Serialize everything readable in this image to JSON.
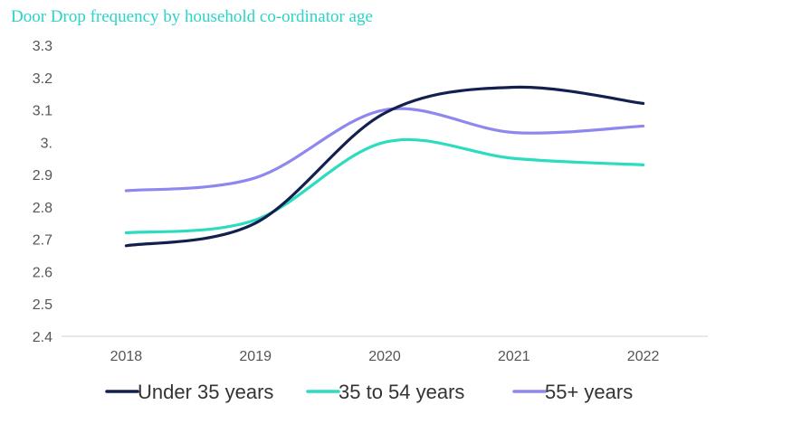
{
  "chart_data": {
    "type": "line",
    "title": "Door Drop frequency by household co-ordinator age",
    "xlabel": "",
    "ylabel": "",
    "categories": [
      "2018",
      "2019",
      "2020",
      "2021",
      "2022"
    ],
    "y_ticks": [
      "2.4",
      "2.5",
      "2.6",
      "2.7",
      "2.8",
      "2.9",
      "3.",
      "3.1",
      "3.2",
      "3.3"
    ],
    "ylim": [
      2.4,
      3.3
    ],
    "grid": false,
    "smooth": true,
    "legend_position": "bottom",
    "series": [
      {
        "name": "Under 35 years",
        "color": "#13204f",
        "values": [
          2.68,
          2.75,
          3.09,
          3.17,
          3.12
        ]
      },
      {
        "name": "35 to 54 years",
        "color": "#2bdcbf",
        "values": [
          2.72,
          2.76,
          3.0,
          2.95,
          2.93
        ]
      },
      {
        "name": "55+ years",
        "color": "#8e87ef",
        "values": [
          2.85,
          2.89,
          3.1,
          3.03,
          3.05
        ]
      }
    ]
  }
}
